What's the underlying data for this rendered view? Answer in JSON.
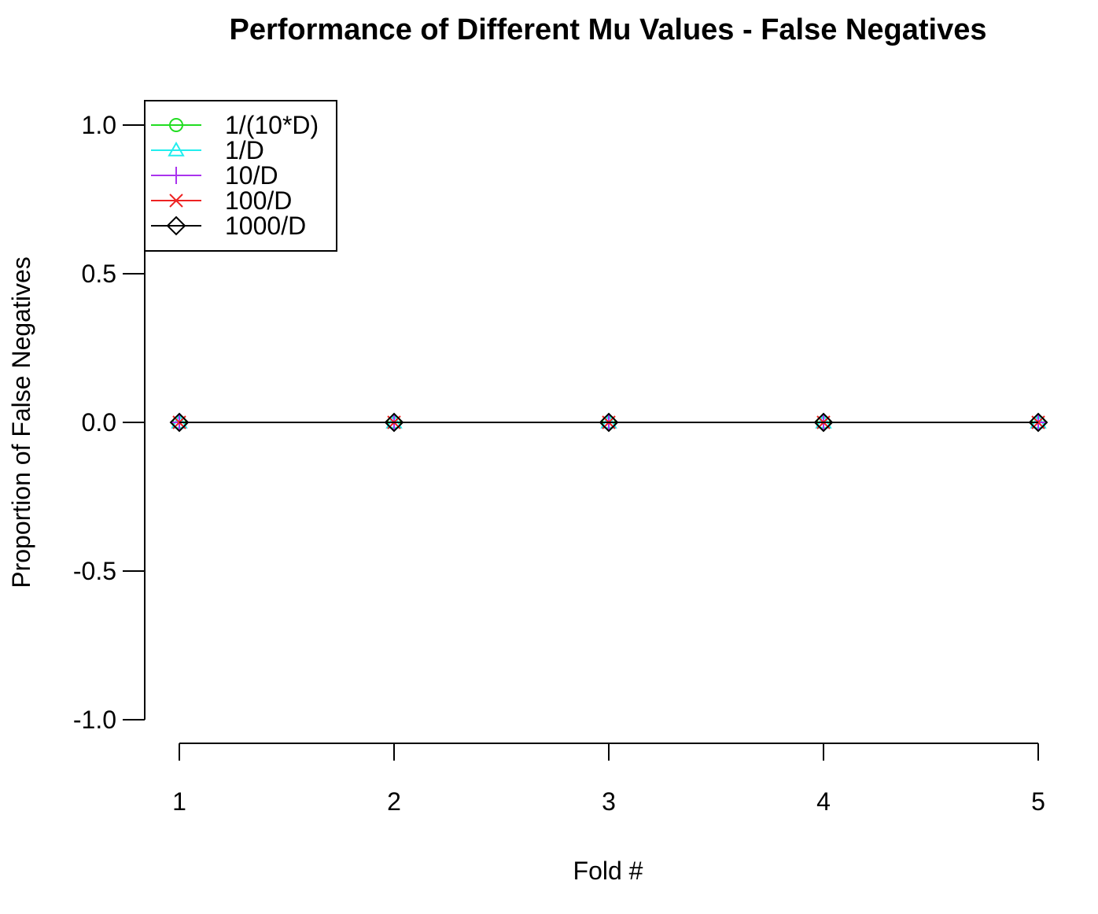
{
  "chart_data": {
    "type": "line",
    "title": "Performance of Different Mu Values - False Negatives",
    "xlabel": "Fold #",
    "ylabel": "Proportion of False Negatives",
    "x": [
      1,
      2,
      3,
      4,
      5
    ],
    "xticks": [
      "1",
      "2",
      "3",
      "4",
      "5"
    ],
    "yticks": [
      "-1.0",
      "-0.5",
      "0.0",
      "0.5",
      "1.0"
    ],
    "xlim": [
      1,
      5
    ],
    "ylim": [
      -1.0,
      1.0
    ],
    "grid": false,
    "legend_position": "top-left",
    "series": [
      {
        "name": "1/(10*D)",
        "values": [
          0,
          0,
          0,
          0,
          0
        ],
        "color": "#22dd22",
        "marker": "circle"
      },
      {
        "name": "1/D",
        "values": [
          0,
          0,
          0,
          0,
          0
        ],
        "color": "#22eeee",
        "marker": "triangle"
      },
      {
        "name": "10/D",
        "values": [
          0,
          0,
          0,
          0,
          0
        ],
        "color": "#aa33ee",
        "marker": "plus"
      },
      {
        "name": "100/D",
        "values": [
          0,
          0,
          0,
          0,
          0
        ],
        "color": "#ee2222",
        "marker": "cross"
      },
      {
        "name": "1000/D",
        "values": [
          0,
          0,
          0,
          0,
          0
        ],
        "color": "#000000",
        "marker": "diamond"
      }
    ]
  }
}
